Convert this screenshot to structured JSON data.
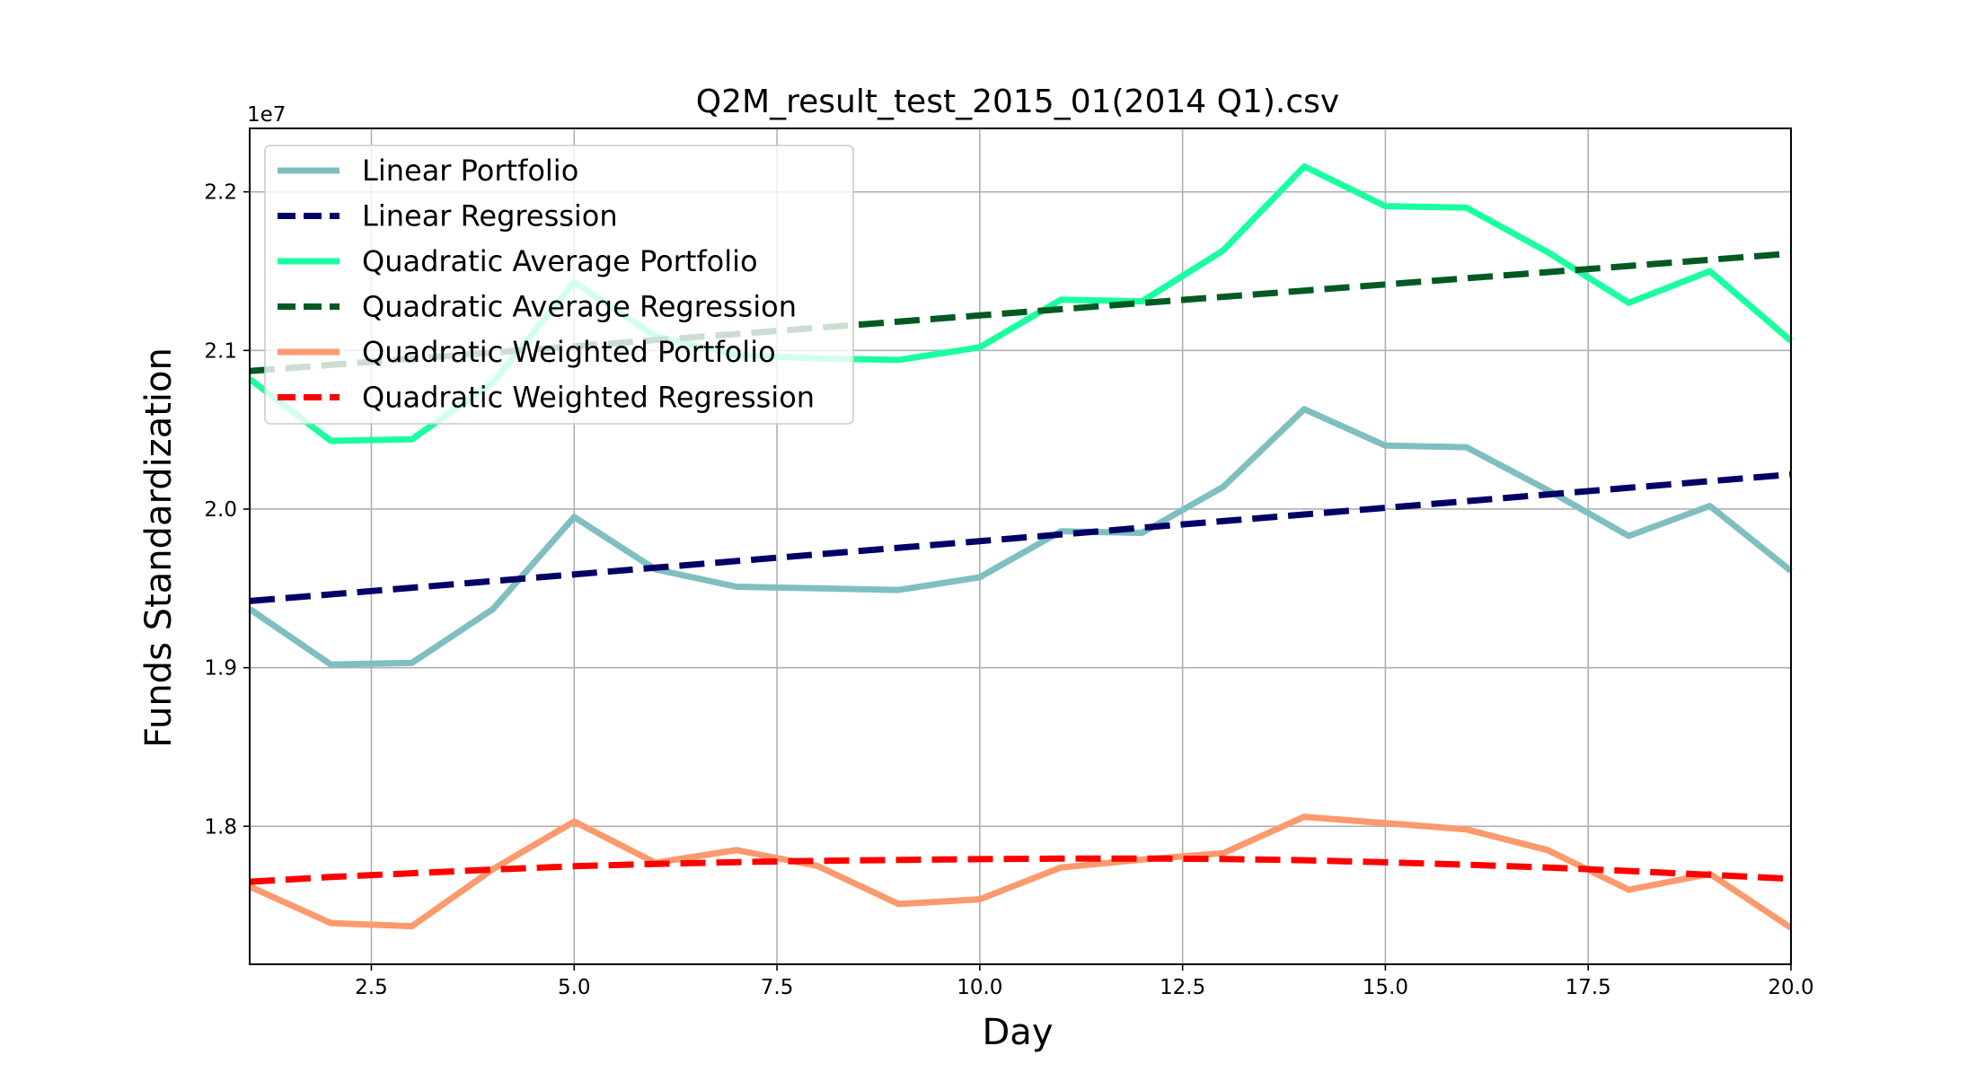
{
  "chart_data": {
    "type": "line",
    "title": "Q2M_result_test_2015_01(2014 Q1).csv",
    "xlabel": "Day",
    "ylabel": "Funds Standardization",
    "y_offset_label": "1e7",
    "xlim": [
      1,
      20
    ],
    "ylim": [
      1.713,
      2.24
    ],
    "y_scale_note": "values in units of 1e7",
    "grid": true,
    "legend_placement": "top-left",
    "x_ticks": [
      2.5,
      5.0,
      7.5,
      10.0,
      12.5,
      15.0,
      17.5,
      20.0
    ],
    "x_tick_labels": [
      "2.5",
      "5.0",
      "7.5",
      "10.0",
      "12.5",
      "15.0",
      "17.5",
      "20.0"
    ],
    "y_ticks": [
      1.8,
      1.9,
      2.0,
      2.1,
      2.2
    ],
    "y_tick_labels": [
      "1.8",
      "1.9",
      "2.0",
      "2.1",
      "2.2"
    ],
    "x": [
      1,
      2,
      3,
      4,
      5,
      6,
      7,
      8,
      9,
      10,
      11,
      12,
      13,
      14,
      15,
      16,
      17,
      18,
      19,
      20
    ],
    "series": [
      {
        "name": "Linear Portfolio",
        "color": "#80bfc0",
        "style": "solid",
        "values": [
          1.937,
          1.902,
          1.903,
          1.937,
          1.995,
          1.962,
          1.951,
          1.95,
          1.949,
          1.957,
          1.986,
          1.985,
          2.014,
          2.063,
          2.04,
          2.039,
          2.012,
          1.983,
          2.002,
          1.961
        ]
      },
      {
        "name": "Linear Regression",
        "color": "#000066",
        "style": "dashed",
        "values": [
          1.942,
          1.9462,
          1.9504,
          1.9546,
          1.9588,
          1.963,
          1.9672,
          1.9714,
          1.9756,
          1.9798,
          1.984,
          1.9882,
          1.9924,
          1.9966,
          2.0008,
          2.005,
          2.0092,
          2.0134,
          2.0176,
          2.0218
        ]
      },
      {
        "name": "Quadratic Average Portfolio",
        "color": "#1affa0",
        "style": "solid",
        "values": [
          2.082,
          2.043,
          2.044,
          2.08,
          2.143,
          2.109,
          2.097,
          2.095,
          2.094,
          2.102,
          2.132,
          2.131,
          2.163,
          2.216,
          2.191,
          2.19,
          2.162,
          2.13,
          2.15,
          2.106
        ]
      },
      {
        "name": "Quadratic Average Regression",
        "color": "#005a22",
        "style": "dashed",
        "values": [
          2.087,
          2.0909,
          2.0948,
          2.0987,
          2.1026,
          2.1065,
          2.1104,
          2.1143,
          2.1182,
          2.1221,
          2.126,
          2.1299,
          2.1338,
          2.1377,
          2.1416,
          2.1455,
          2.1494,
          2.1533,
          2.1572,
          2.1611
        ]
      },
      {
        "name": "Quadratic Weighted Portfolio",
        "color": "#fc9a6e",
        "style": "solid",
        "values": [
          1.762,
          1.739,
          1.737,
          1.773,
          1.803,
          1.777,
          1.785,
          1.775,
          1.751,
          1.754,
          1.774,
          1.779,
          1.783,
          1.806,
          1.802,
          1.798,
          1.785,
          1.76,
          1.77,
          1.736
        ]
      },
      {
        "name": "Quadratic Weighted Regression",
        "color": "#ff0000",
        "style": "dashed",
        "values": [
          1.765,
          1.768,
          1.7704,
          1.7727,
          1.7748,
          1.7763,
          1.7774,
          1.7782,
          1.7788,
          1.7793,
          1.7796,
          1.7797,
          1.7794,
          1.7786,
          1.7773,
          1.7758,
          1.774,
          1.7718,
          1.7694,
          1.7669
        ]
      }
    ]
  }
}
